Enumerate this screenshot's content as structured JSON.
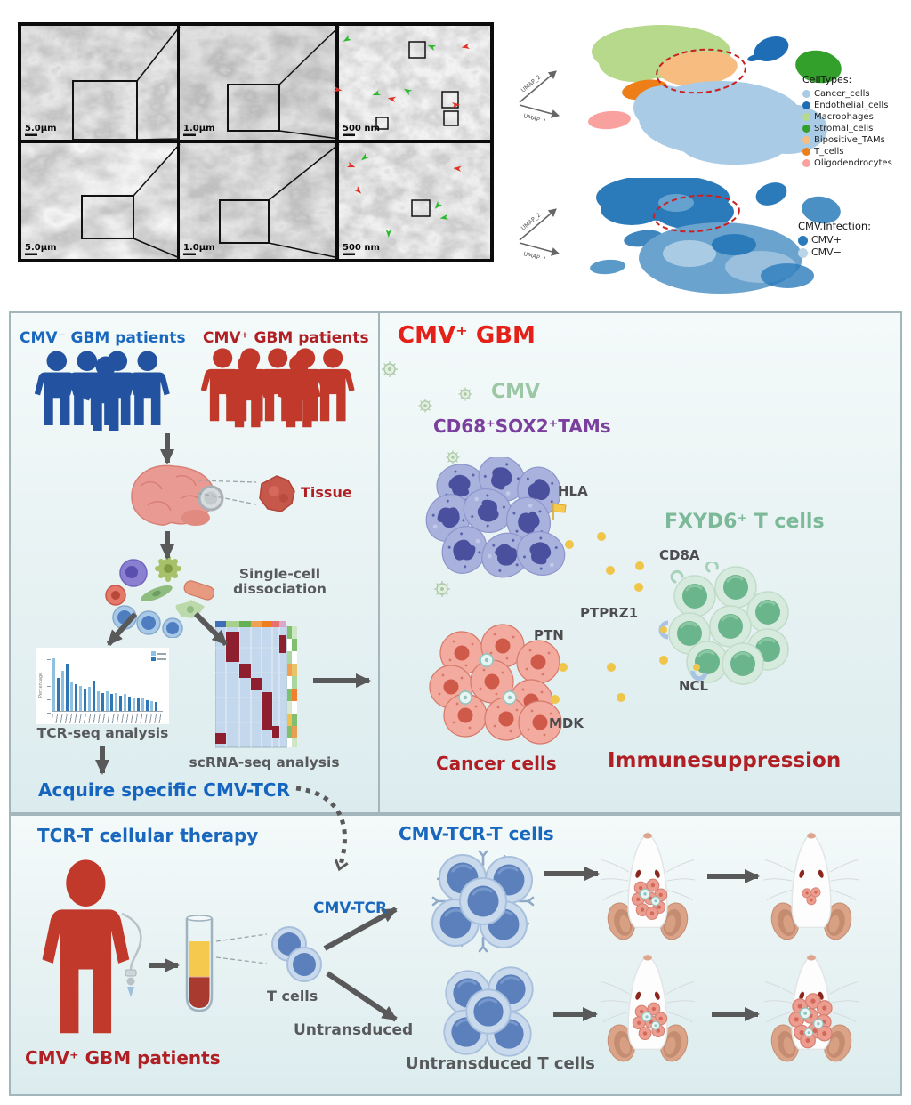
{
  "colors": {
    "blue_text": "#1a68bd",
    "red_text": "#b01f24",
    "bright_red": "#e32119",
    "green_text": "#9cc7a5",
    "green_text2": "#7cb999",
    "purple_text": "#7b3f9e",
    "gray_text": "#4d4d4f",
    "arrow": "#595959"
  },
  "em": {
    "scale_bars": [
      "5.0µm",
      "1.0µm",
      "500 nm",
      "5.0µm",
      "1.0µm",
      "500 nm"
    ]
  },
  "umap_celltypes": {
    "axis_y": "UMAP_2",
    "axis_x": "UMAP_1",
    "legend_title": "CellTypes:",
    "legend": [
      {
        "label": "Cancer_cells",
        "color": "#a9cbe6"
      },
      {
        "label": "Endothelial_cells",
        "color": "#1f6db5"
      },
      {
        "label": "Macrophages",
        "color": "#b7d98b"
      },
      {
        "label": "Stromal_cells",
        "color": "#33a02c"
      },
      {
        "label": "Bipositive_TAMs",
        "color": "#f7bd80"
      },
      {
        "label": "T_cells",
        "color": "#ee7e18"
      },
      {
        "label": "Oligodendrocytes",
        "color": "#f8a19f"
      }
    ]
  },
  "umap_infection": {
    "axis_y": "UMAP_2",
    "axis_x": "UMAP_1",
    "legend_title": "CMV.Infection:",
    "legend": [
      {
        "label": "CMV+",
        "color": "#2b7bba"
      },
      {
        "label": "CMV−",
        "color": "#bad4e8"
      }
    ]
  },
  "workflow": {
    "cmv_neg_patients": "CMV⁻ GBM patients",
    "cmv_pos_patients": "CMV⁺ GBM patients",
    "tissue": "Tissue",
    "dissociation": "Single-cell dissociation",
    "tcr_seq": "TCR-seq analysis",
    "scrna_seq": "scRNA-seq analysis",
    "acquire": "Acquire specific CMV-TCR",
    "tcr_chart": {
      "ylabel": "Percentage",
      "bars": [
        95,
        60,
        72,
        85,
        52,
        48,
        45,
        40,
        44,
        55,
        35,
        32,
        36,
        30,
        32,
        28,
        30,
        26,
        25,
        24,
        22,
        20,
        18,
        16
      ]
    }
  },
  "gbm_panel": {
    "title": "CMV⁺ GBM",
    "cmv": "CMV",
    "tams": "CD68⁺SOX2⁺TAMs",
    "hla": "HLA",
    "fxyd6": "FXYD6⁺ T cells",
    "cd8a": "CD8A",
    "ptprz1": "PTPRZ1",
    "ncl": "NCL",
    "ptn": "PTN",
    "mdk": "MDK",
    "cancer_cells": "Cancer cells",
    "immunesuppression": "Immunesuppression"
  },
  "therapy": {
    "title": "TCR-T cellular therapy",
    "cmv_tcr": "CMV-TCR",
    "tcr_t_cells": "CMV-TCR-T cells",
    "t_cells": "T cells",
    "untransduced": "Untransduced",
    "untransduced_t_cells": "Untransduced T cells",
    "patients": "CMV⁺ GBM patients"
  }
}
